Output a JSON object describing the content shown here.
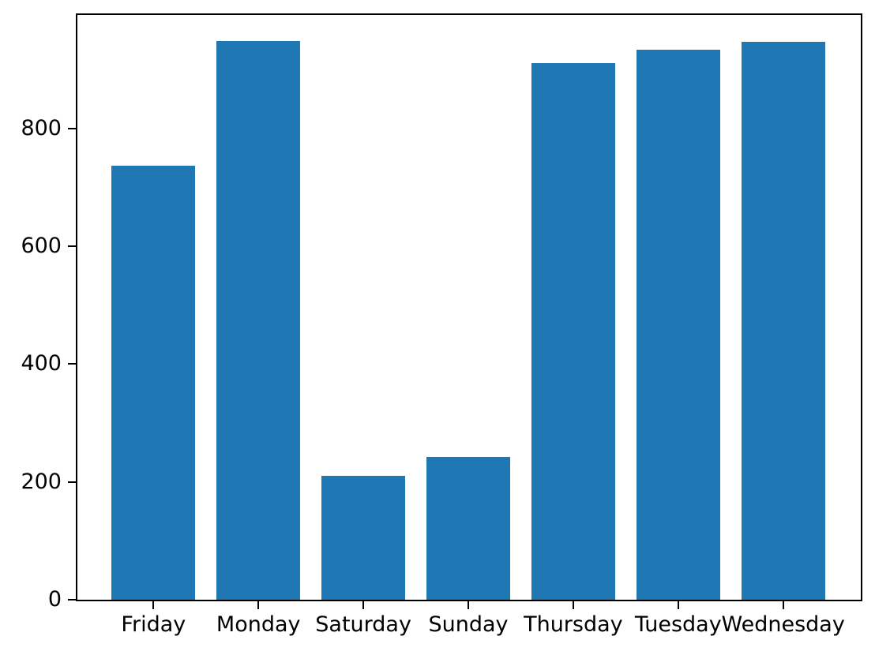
{
  "figure": {
    "background": "#ffffff"
  },
  "chart_data": {
    "type": "bar",
    "title": "",
    "xlabel": "",
    "ylabel": "",
    "categories": [
      "Friday",
      "Monday",
      "Saturday",
      "Sunday",
      "Thursday",
      "Tuesday",
      "Wednesday"
    ],
    "values": [
      737,
      948,
      210,
      243,
      910,
      933,
      947
    ],
    "yticks": [
      0,
      200,
      400,
      600,
      800
    ],
    "ytick_labels": [
      "0",
      "200",
      "400",
      "600",
      "800"
    ],
    "ylim": [
      0,
      995
    ],
    "xlim": [
      -0.74,
      6.74
    ],
    "bar_width_fraction": 0.8,
    "bar_color": "#1f77b4",
    "axis_color": "#000000",
    "text_color": "#000000",
    "grid": false,
    "legend": false
  }
}
